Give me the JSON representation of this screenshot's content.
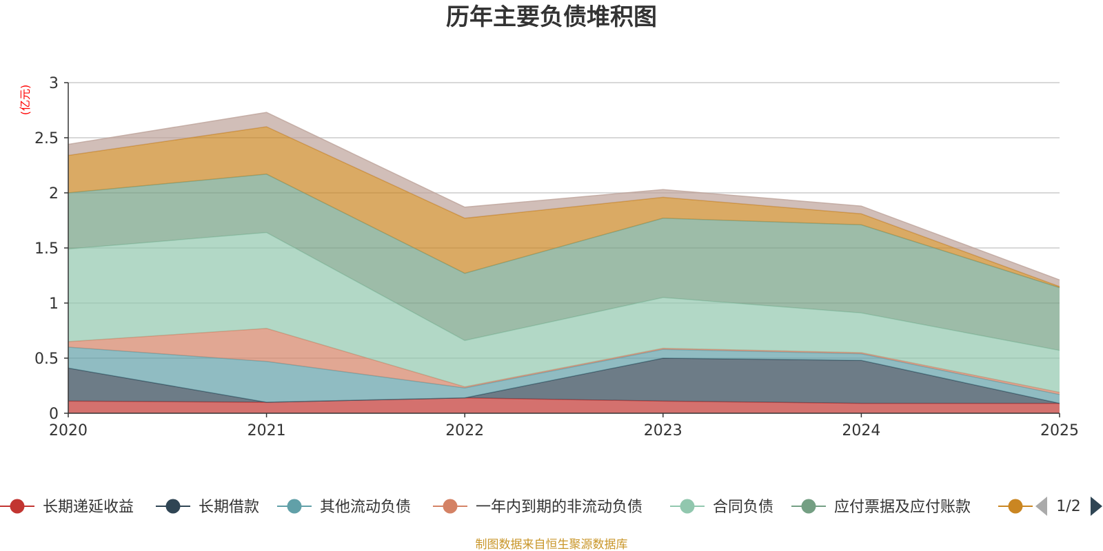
{
  "chart_data": {
    "type": "area",
    "stacked": true,
    "title": "历年主要负债堆积图",
    "unit_label": "(亿元)",
    "x": [
      "2020",
      "2021",
      "2022",
      "2023",
      "2024",
      "2025"
    ],
    "ylim": [
      0,
      3
    ],
    "yticks": [
      "0",
      "0.5",
      "1",
      "1.5",
      "2",
      "2.5",
      "3"
    ],
    "grid": true,
    "series": [
      {
        "name": "长期递延收益",
        "color": "#c23531",
        "values": [
          0.11,
          0.1,
          0.14,
          0.11,
          0.09,
          0.09
        ]
      },
      {
        "name": "长期借款",
        "color": "#2f4554",
        "values": [
          0.3,
          0.0,
          0.0,
          0.39,
          0.39,
          0.0
        ]
      },
      {
        "name": "其他流动负债",
        "color": "#61a0a8",
        "values": [
          0.19,
          0.37,
          0.09,
          0.08,
          0.06,
          0.08
        ]
      },
      {
        "name": "一年内到期的非流动负债",
        "color": "#d48265",
        "values": [
          0.05,
          0.3,
          0.01,
          0.01,
          0.01,
          0.02
        ]
      },
      {
        "name": "合同负债",
        "color": "#91c7ae",
        "values": [
          0.84,
          0.87,
          0.42,
          0.46,
          0.36,
          0.38
        ]
      },
      {
        "name": "应付票据及应付账款",
        "color": "#749f83",
        "values": [
          0.51,
          0.53,
          0.61,
          0.72,
          0.8,
          0.57
        ]
      },
      {
        "name": "",
        "color": "#ca8622",
        "values": [
          0.34,
          0.43,
          0.5,
          0.19,
          0.1,
          0.01
        ]
      },
      {
        "name": "",
        "color": "#bda29a",
        "values": [
          0.1,
          0.13,
          0.1,
          0.07,
          0.07,
          0.06
        ]
      }
    ],
    "legend_position": "bottom",
    "legend_page": "1/2"
  },
  "footer": "制图数据来自恒生聚源数据库"
}
